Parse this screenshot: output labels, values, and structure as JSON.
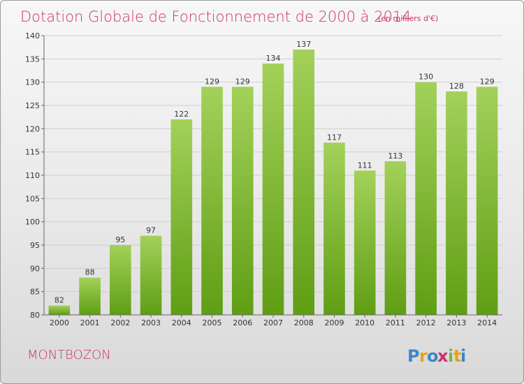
{
  "title": "Dotation Globale de Fonctionnement de 2000 à 2014",
  "subtitle": "(en milliers d'€)",
  "place": "MONTBOZON",
  "logo": "Proxiti",
  "colors": {
    "bar_top": "#a3d15a",
    "bar_bottom": "#5f9e14",
    "title": "#d0306a",
    "grid": "#cfcfcf"
  },
  "chart_data": {
    "type": "bar",
    "title": "Dotation Globale de Fonctionnement de 2000 à 2014",
    "subtitle": "(en milliers d'€)",
    "categories": [
      "2000",
      "2001",
      "2002",
      "2003",
      "2004",
      "2005",
      "2006",
      "2007",
      "2008",
      "2009",
      "2010",
      "2011",
      "2012",
      "2013",
      "2014"
    ],
    "values": [
      82,
      88,
      95,
      97,
      122,
      129,
      129,
      134,
      137,
      117,
      111,
      113,
      130,
      128,
      129
    ],
    "ylim": [
      80,
      140
    ],
    "yticks": [
      80,
      85,
      90,
      95,
      100,
      105,
      110,
      115,
      120,
      125,
      130,
      135,
      140
    ],
    "grid": true,
    "legend": "none"
  }
}
